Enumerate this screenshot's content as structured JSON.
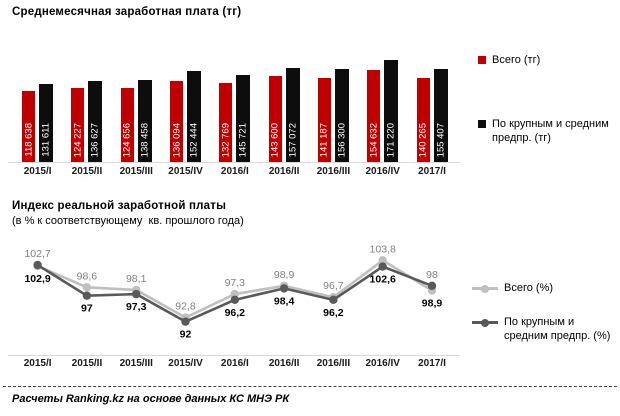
{
  "page": {
    "source_note": "Расчеты Ranking.kz на основе данных КС МНЭ РК"
  },
  "colors": {
    "bar_total": "#C00000",
    "bar_large_medium": "#0D0D0D",
    "line_total": "#BFBFBF",
    "line_large_medium": "#595959",
    "light_label": "#7F7F7F",
    "dark_label": "#000000",
    "axis": "#D9D9D9",
    "bar_value_text": "#FFFFFF"
  },
  "chart_data": [
    {
      "type": "bar",
      "title": "Среднемесячная заработная плата (тг)",
      "categories": [
        "2015/I",
        "2015/II",
        "2015/III",
        "2015/IV",
        "2016/I",
        "2016/II",
        "2016/III",
        "2016/IV",
        "2017/I"
      ],
      "series": [
        {
          "name": "Всего (тг)",
          "color": "#C00000",
          "values": [
            118638,
            124227,
            124656,
            136094,
            132769,
            143600,
            141187,
            154632,
            140265
          ]
        },
        {
          "name": "По крупным и средним предпр. (тг)",
          "color": "#0D0D0D",
          "values": [
            131611,
            136627,
            138458,
            152444,
            145721,
            157072,
            156300,
            171220,
            155407
          ]
        }
      ],
      "ylim": [
        0,
        180000
      ],
      "grid": "off",
      "legend_position": "right",
      "value_labels": "inside bars, rotated 90°, white, space-separated thousands"
    },
    {
      "type": "line",
      "title": "Индекс реальной заработной платы",
      "subtitle": "(в % к соответствующему  кв. прошлого года)",
      "categories": [
        "2015/I",
        "2015/II",
        "2015/III",
        "2015/IV",
        "2016/I",
        "2016/II",
        "2016/III",
        "2016/IV",
        "2017/I"
      ],
      "series": [
        {
          "name": "Всего (%)",
          "color": "#BFBFBF",
          "values": [
            102.7,
            98.6,
            98.1,
            92.8,
            97.3,
            98.9,
            96.7,
            103.8,
            98
          ]
        },
        {
          "name": "По крупным и средним предпр. (%)",
          "color": "#595959",
          "values": [
            102.9,
            97,
            97.3,
            92,
            96.2,
            98.4,
            96.2,
            102.6,
            98.9
          ]
        }
      ],
      "ylim": [
        86,
        106
      ],
      "grid": "off",
      "legend_position": "right",
      "value_labels": "above line for 'Всего (%)' in gray, below line in bold black for 'По крупным и средним предпр. (%)', decimal comma"
    }
  ]
}
